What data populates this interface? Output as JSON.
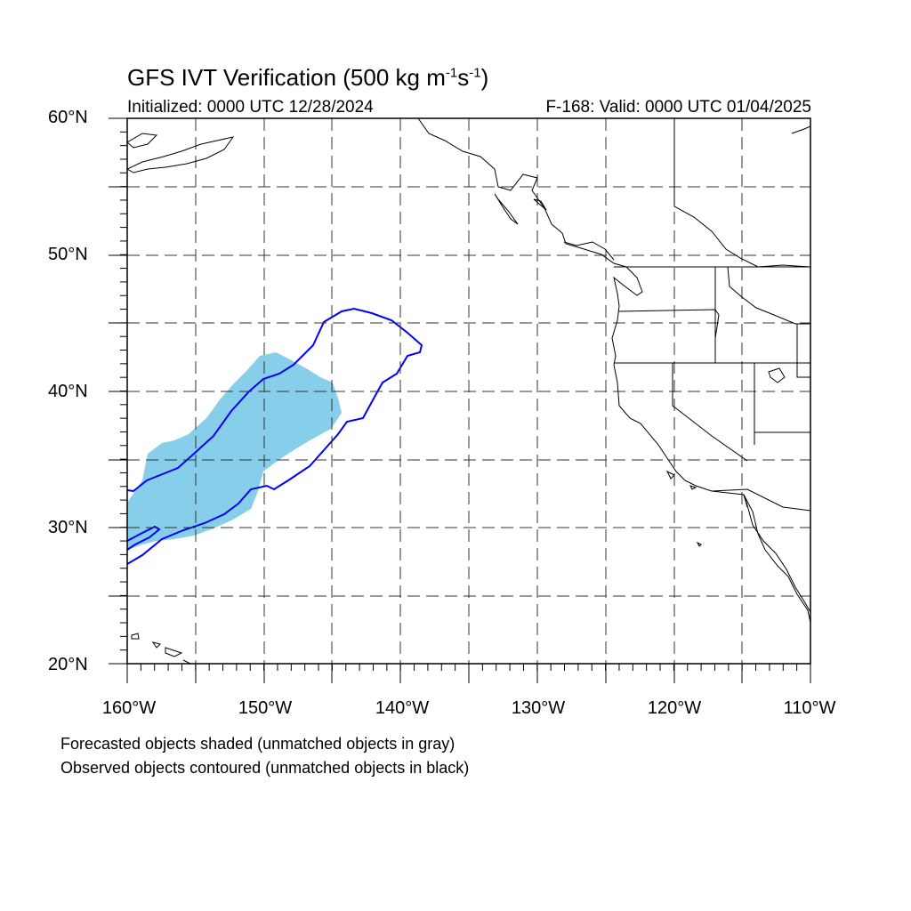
{
  "title_main": "GFS IVT Verification (500 kg m",
  "title_exp1": "-1",
  "title_mid": "s",
  "title_exp2": "-1",
  "title_end": ")",
  "initialized": "Initialized: 0000 UTC 12/28/2024",
  "valid": "F-168: Valid: 0000 UTC 01/04/2025",
  "lat_labels": [
    "60°N",
    "50°N",
    "40°N",
    "30°N",
    "20°N"
  ],
  "lon_labels": [
    "160°W",
    "150°W",
    "140°W",
    "130°W",
    "120°W",
    "110°W"
  ],
  "legend_line1": "Forecasted objects shaded (unmatched objects in gray)",
  "legend_line2": "Observed objects contoured (unmatched objects in black)",
  "colors": {
    "forecast_fill": "#87ceeb",
    "observed_contour": "#0000ff",
    "coastline": "#000000"
  },
  "map_extent": {
    "lon": [
      -160,
      -110
    ],
    "lat": [
      20,
      60
    ]
  }
}
